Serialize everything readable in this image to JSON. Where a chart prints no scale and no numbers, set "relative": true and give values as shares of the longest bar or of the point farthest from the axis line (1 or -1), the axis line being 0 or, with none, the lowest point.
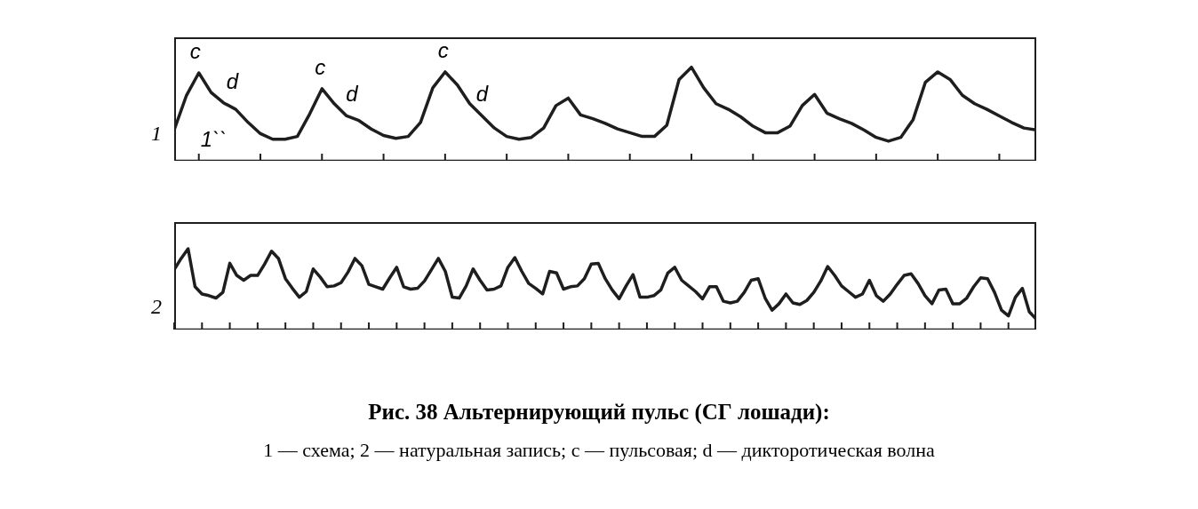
{
  "chart_data": [
    {
      "type": "line",
      "relative": true,
      "ylabel": "1",
      "annotations": [
        "c",
        "d",
        "c",
        "d",
        "c",
        "d",
        "1``"
      ],
      "categories": [
        null,
        null,
        null,
        null,
        null,
        null,
        null,
        null,
        null,
        null,
        null,
        null,
        null,
        null,
        null,
        null,
        null,
        null,
        null,
        null,
        null,
        null,
        null,
        null,
        null,
        null,
        null,
        null,
        null,
        null,
        null,
        null,
        null,
        null,
        null,
        null,
        null,
        null,
        null,
        null,
        null,
        null,
        null,
        null,
        null,
        null,
        null,
        null,
        null,
        null,
        null,
        null,
        null,
        null,
        null,
        null,
        null,
        null,
        null,
        null,
        null,
        null,
        null,
        null,
        null,
        null,
        null,
        null,
        null,
        null,
        null
      ],
      "series": [
        {
          "color": "#1e1e1e",
          "values": [
            0.33,
            0.7,
            0.94,
            0.73,
            0.62,
            0.55,
            0.41,
            0.29,
            0.23,
            0.23,
            0.26,
            0.5,
            0.77,
            0.61,
            0.48,
            0.43,
            0.34,
            0.27,
            0.24,
            0.26,
            0.41,
            0.78,
            0.95,
            0.81,
            0.61,
            0.48,
            0.35,
            0.26,
            0.23,
            0.25,
            0.35,
            0.59,
            0.67,
            0.49,
            0.45,
            0.4,
            0.34,
            0.3,
            0.26,
            0.26,
            0.38,
            0.87,
            1.0,
            0.78,
            0.61,
            0.55,
            0.47,
            0.37,
            0.3,
            0.3,
            0.37,
            0.59,
            0.71,
            0.51,
            0.45,
            0.4,
            0.33,
            0.25,
            0.21,
            0.25,
            0.44,
            0.84,
            0.95,
            0.87,
            0.7,
            0.61,
            0.55,
            0.48,
            0.41,
            0.35,
            0.33
          ]
        }
      ]
    },
    {
      "type": "line",
      "relative": true,
      "ylabel": "2",
      "title": "Рис. 38 Альтернирующий пульс (СГ лошади):",
      "annotations": [
        "1 — схема; 2 — натуральная запись; c — пульсовая; d — дикторотическая волна"
      ],
      "categories": [
        null,
        null,
        null,
        null,
        null,
        null,
        null,
        null,
        null,
        null,
        null,
        null,
        null,
        null,
        null,
        null,
        null,
        null,
        null,
        null,
        null,
        null,
        null,
        null,
        null,
        null,
        null,
        null,
        null,
        null,
        null,
        null,
        null,
        null,
        null,
        null,
        null,
        null,
        null,
        null,
        null,
        null,
        null,
        null,
        null,
        null,
        null,
        null,
        null,
        null,
        null,
        null,
        null,
        null,
        null,
        null,
        null,
        null,
        null,
        null,
        null,
        null,
        null,
        null,
        null,
        null,
        null,
        null,
        null,
        null,
        null,
        null,
        null,
        null,
        null,
        null,
        null,
        null,
        null,
        null,
        null,
        null,
        null,
        null,
        null,
        null,
        null,
        null,
        null,
        null,
        null,
        null,
        null,
        null,
        null,
        null,
        null,
        null,
        null,
        null,
        null,
        null,
        null,
        null,
        null,
        null,
        null,
        null,
        null,
        null,
        null,
        null,
        null,
        null,
        null,
        null,
        null,
        null,
        null,
        null,
        null,
        null,
        null,
        null,
        null
      ],
      "series": [
        {
          "color": "#1e1e1e",
          "values": [
            0.74,
            0.88,
            1.0,
            0.53,
            0.44,
            0.42,
            0.39,
            0.46,
            0.82,
            0.67,
            0.61,
            0.67,
            0.67,
            0.81,
            0.97,
            0.88,
            0.63,
            0.51,
            0.4,
            0.47,
            0.75,
            0.65,
            0.53,
            0.54,
            0.58,
            0.71,
            0.88,
            0.79,
            0.56,
            0.53,
            0.5,
            0.64,
            0.77,
            0.53,
            0.5,
            0.51,
            0.6,
            0.74,
            0.88,
            0.72,
            0.4,
            0.39,
            0.54,
            0.75,
            0.61,
            0.49,
            0.5,
            0.54,
            0.77,
            0.89,
            0.72,
            0.57,
            0.51,
            0.44,
            0.72,
            0.7,
            0.5,
            0.53,
            0.54,
            0.63,
            0.81,
            0.82,
            0.63,
            0.49,
            0.38,
            0.54,
            0.68,
            0.4,
            0.4,
            0.42,
            0.49,
            0.7,
            0.77,
            0.61,
            0.54,
            0.47,
            0.38,
            0.53,
            0.53,
            0.35,
            0.33,
            0.35,
            0.46,
            0.61,
            0.63,
            0.39,
            0.24,
            0.32,
            0.44,
            0.33,
            0.31,
            0.36,
            0.46,
            0.6,
            0.78,
            0.67,
            0.54,
            0.47,
            0.4,
            0.44,
            0.61,
            0.42,
            0.35,
            0.44,
            0.56,
            0.67,
            0.69,
            0.57,
            0.42,
            0.32,
            0.49,
            0.5,
            0.32,
            0.32,
            0.39,
            0.53,
            0.64,
            0.63,
            0.46,
            0.24,
            0.17,
            0.4,
            0.51,
            0.22,
            0.13
          ]
        }
      ]
    }
  ]
}
